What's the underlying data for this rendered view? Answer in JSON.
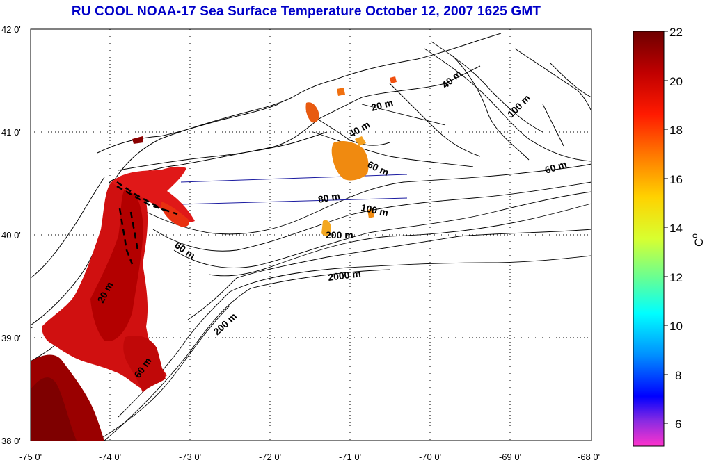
{
  "title": "RU COOL  NOAA-17 Sea Surface Temperature October 12, 2007 1625 GMT",
  "x_ticks": [
    "-75 0'",
    "-74 0'",
    "-73 0'",
    "-72 0'",
    "-71 0'",
    "-70 0'",
    "-69 0'",
    "-68 0'"
  ],
  "y_ticks": [
    "42 0'",
    "41 0'",
    "40 0'",
    "39 0'",
    "38 0'"
  ],
  "colorbar": {
    "ticks": [
      "22",
      "20",
      "18",
      "16",
      "14",
      "12",
      "10",
      "8",
      "6"
    ],
    "unit": "C",
    "unit_superscript": "o",
    "colors": [
      "#7a0000",
      "#ff0000",
      "#ff9900",
      "#ffff00",
      "#80ff80",
      "#00ffff",
      "#0080ff",
      "#0000ff",
      "#ff33cc"
    ]
  },
  "depth_labels": [
    "20 m",
    "40 m",
    "60 m",
    "80 m",
    "100 m",
    "200 m",
    "2000 m",
    "20 m",
    "60 m",
    "200 m",
    "60 m",
    "40 m",
    "100 m",
    "60 m"
  ]
}
